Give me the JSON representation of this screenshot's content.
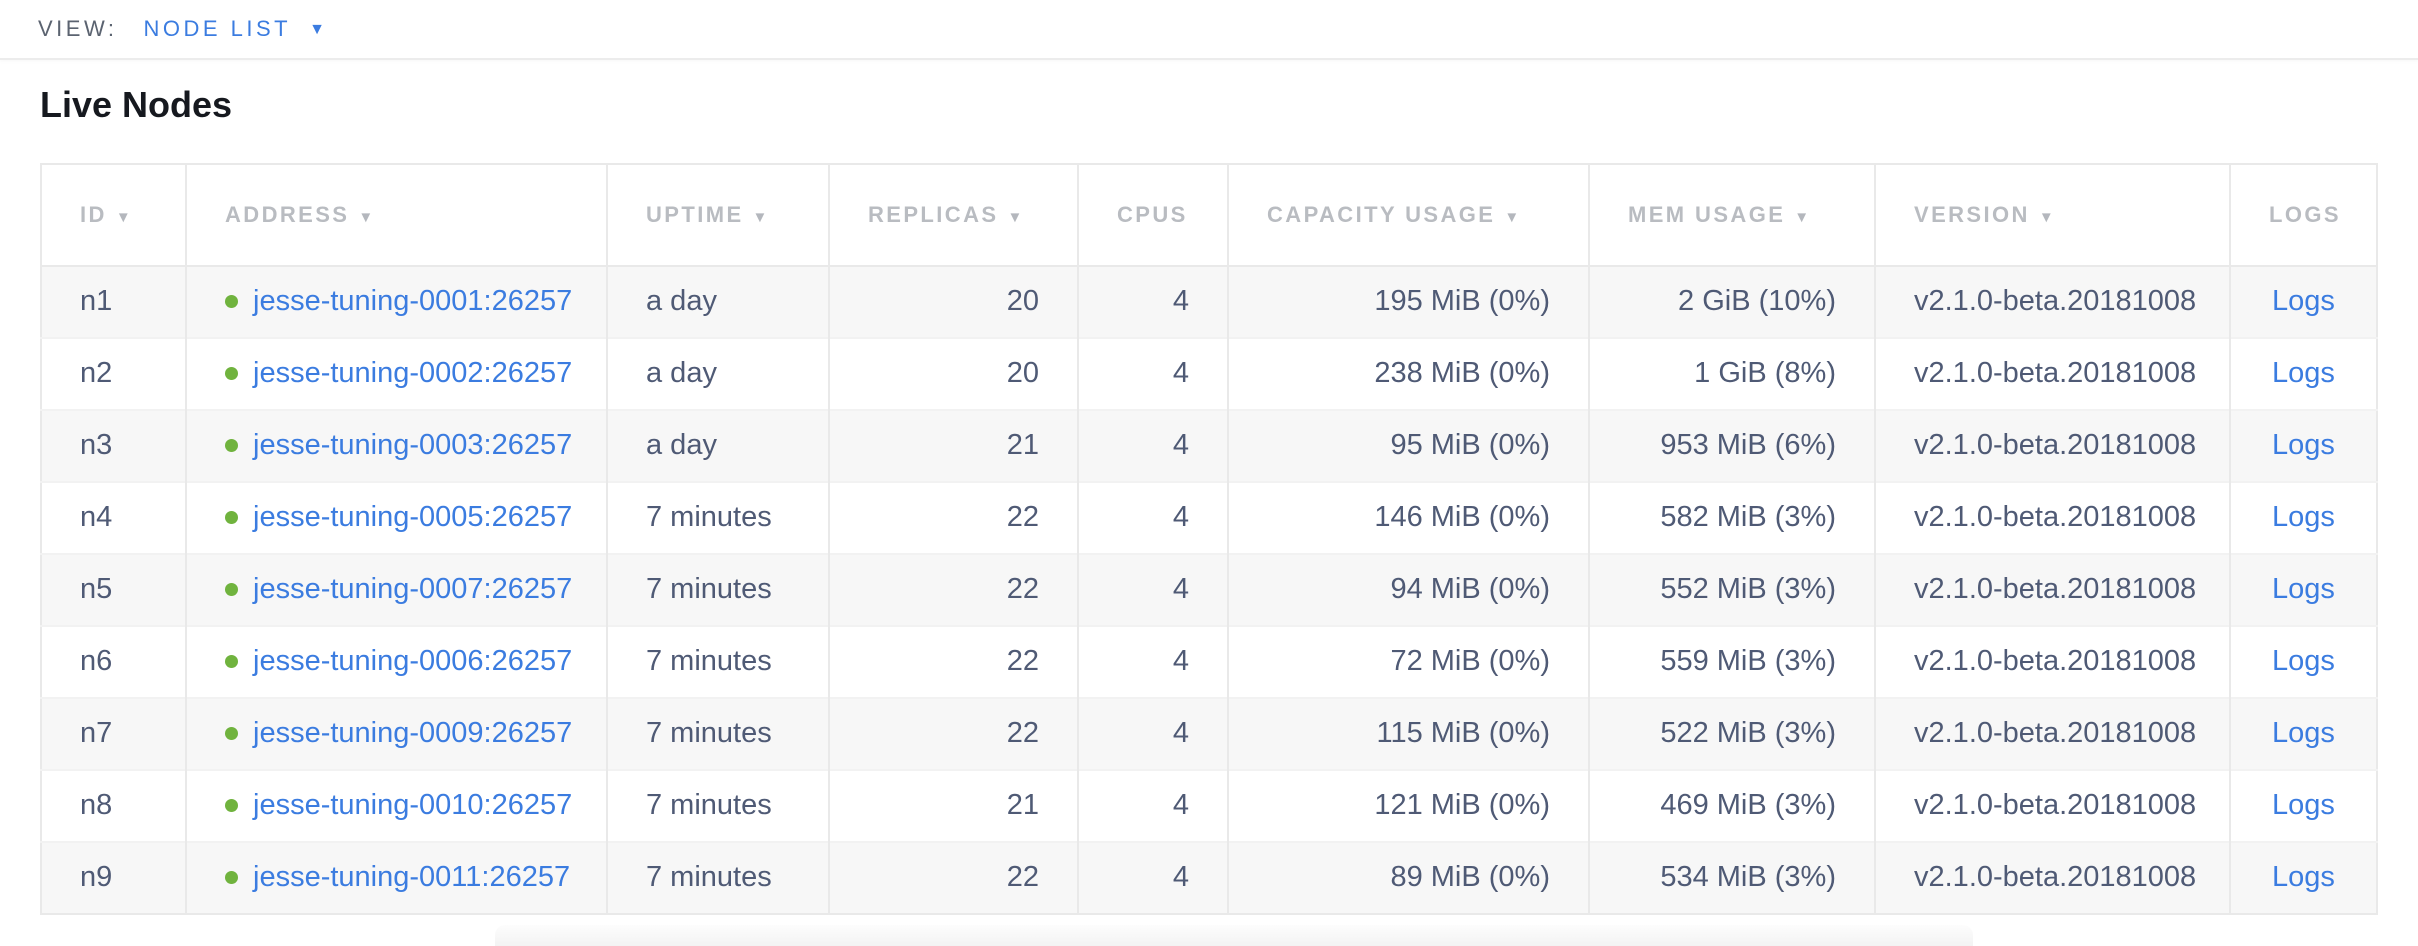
{
  "view_bar": {
    "label": "VIEW:",
    "selected_view": "NODE LIST"
  },
  "page": {
    "title": "Live Nodes"
  },
  "icons": {
    "sort_desc_icon": "▼",
    "dropdown_caret_icon": "▼",
    "status_dot_icon": "●"
  },
  "colors": {
    "accent_blue": "#3b7ce0",
    "status_green": "#70b33e",
    "header_gray": "#b9bcc1",
    "body_text": "#4f5a75",
    "row_stripe": "#f7f7f7",
    "table_border": "#e9e9e9"
  },
  "table": {
    "columns": [
      {
        "key": "id",
        "label": "ID",
        "sortable": true
      },
      {
        "key": "address",
        "label": "ADDRESS",
        "sortable": true
      },
      {
        "key": "uptime",
        "label": "UPTIME",
        "sortable": true
      },
      {
        "key": "replicas",
        "label": "REPLICAS",
        "sortable": true
      },
      {
        "key": "cpus",
        "label": "CPUS",
        "sortable": false
      },
      {
        "key": "capacity",
        "label": "CAPACITY USAGE",
        "sortable": true
      },
      {
        "key": "mem",
        "label": "MEM USAGE",
        "sortable": true
      },
      {
        "key": "version",
        "label": "VERSION",
        "sortable": true
      },
      {
        "key": "logs",
        "label": "LOGS",
        "sortable": false
      }
    ],
    "rows": [
      {
        "id": "n1",
        "address": "jesse-tuning-0001:26257",
        "uptime": "a day",
        "replicas": "20",
        "cpus": "4",
        "capacity": "195 MiB (0%)",
        "mem": "2 GiB (10%)",
        "version": "v2.1.0-beta.20181008",
        "logs": "Logs"
      },
      {
        "id": "n2",
        "address": "jesse-tuning-0002:26257",
        "uptime": "a day",
        "replicas": "20",
        "cpus": "4",
        "capacity": "238 MiB (0%)",
        "mem": "1 GiB (8%)",
        "version": "v2.1.0-beta.20181008",
        "logs": "Logs"
      },
      {
        "id": "n3",
        "address": "jesse-tuning-0003:26257",
        "uptime": "a day",
        "replicas": "21",
        "cpus": "4",
        "capacity": "95 MiB (0%)",
        "mem": "953 MiB (6%)",
        "version": "v2.1.0-beta.20181008",
        "logs": "Logs"
      },
      {
        "id": "n4",
        "address": "jesse-tuning-0005:26257",
        "uptime": "7 minutes",
        "replicas": "22",
        "cpus": "4",
        "capacity": "146 MiB (0%)",
        "mem": "582 MiB (3%)",
        "version": "v2.1.0-beta.20181008",
        "logs": "Logs"
      },
      {
        "id": "n5",
        "address": "jesse-tuning-0007:26257",
        "uptime": "7 minutes",
        "replicas": "22",
        "cpus": "4",
        "capacity": "94 MiB (0%)",
        "mem": "552 MiB (3%)",
        "version": "v2.1.0-beta.20181008",
        "logs": "Logs"
      },
      {
        "id": "n6",
        "address": "jesse-tuning-0006:26257",
        "uptime": "7 minutes",
        "replicas": "22",
        "cpus": "4",
        "capacity": "72 MiB (0%)",
        "mem": "559 MiB (3%)",
        "version": "v2.1.0-beta.20181008",
        "logs": "Logs"
      },
      {
        "id": "n7",
        "address": "jesse-tuning-0009:26257",
        "uptime": "7 minutes",
        "replicas": "22",
        "cpus": "4",
        "capacity": "115 MiB (0%)",
        "mem": "522 MiB (3%)",
        "version": "v2.1.0-beta.20181008",
        "logs": "Logs"
      },
      {
        "id": "n8",
        "address": "jesse-tuning-0010:26257",
        "uptime": "7 minutes",
        "replicas": "21",
        "cpus": "4",
        "capacity": "121 MiB (0%)",
        "mem": "469 MiB (3%)",
        "version": "v2.1.0-beta.20181008",
        "logs": "Logs"
      },
      {
        "id": "n9",
        "address": "jesse-tuning-0011:26257",
        "uptime": "7 minutes",
        "replicas": "22",
        "cpus": "4",
        "capacity": "89 MiB (0%)",
        "mem": "534 MiB (3%)",
        "version": "v2.1.0-beta.20181008",
        "logs": "Logs"
      }
    ]
  }
}
